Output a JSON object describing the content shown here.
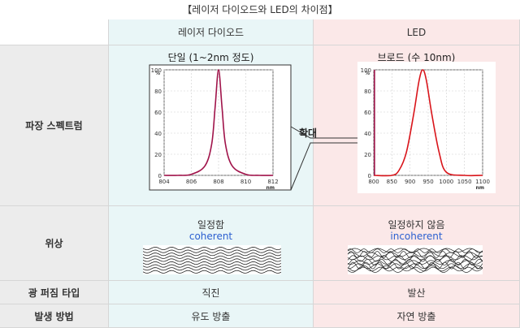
{
  "title": "【레이저 다이오드와 LED의 차이점】",
  "columns": {
    "laser": "레이저 다이오드",
    "led": "LED"
  },
  "rows": {
    "spectrum": "파장 스펙트럼",
    "phase": "위상",
    "spread": "광 퍼짐 타입",
    "method": "발생 방법"
  },
  "laser": {
    "spectrum_caption": "단일 (1~2nm 정도)",
    "phase_label": "일정함",
    "phase_en": "coherent",
    "spread": "직진",
    "method": "유도 방출"
  },
  "led": {
    "spectrum_caption": "브로드 (수 10nm)",
    "phase_label": "일정하지 않음",
    "phase_en": "incoherent",
    "spread": "발산",
    "method": "자연 방출"
  },
  "zoom_label": "확대",
  "colors": {
    "curve": "#a0134a",
    "led_curve": "#d9141a",
    "laser_bg": "#e9f6f7",
    "led_bg": "#fbe8e8",
    "label_bg": "#ececec",
    "en_text": "#2b5fd0"
  },
  "chart_data": [
    {
      "type": "line",
      "series_color": "#a0134a",
      "x": [
        804,
        805,
        806,
        807,
        807.5,
        807.75,
        808,
        808.25,
        808.5,
        809,
        810,
        811,
        812
      ],
      "y": [
        0,
        0,
        1,
        9,
        30,
        65,
        100,
        65,
        30,
        9,
        1,
        0,
        0
      ],
      "xticks": [
        804,
        806,
        808,
        810,
        812
      ],
      "yticks": [
        0,
        20,
        40,
        60,
        80,
        100
      ],
      "xlim": [
        804,
        812
      ],
      "ylim": [
        0,
        100
      ],
      "xunit": "nm",
      "yunit": "%"
    },
    {
      "type": "line",
      "series_color": "#d9141a",
      "x": [
        800,
        850,
        870,
        890,
        910,
        925,
        935,
        945,
        960,
        980,
        1000,
        1050,
        1100
      ],
      "y": [
        0,
        0,
        5,
        22,
        58,
        90,
        100,
        90,
        58,
        22,
        3,
        0,
        0
      ],
      "xticks": [
        800,
        850,
        900,
        950,
        1000,
        1050,
        1100
      ],
      "yticks": [
        0,
        20,
        40,
        60,
        80,
        100
      ],
      "xlim": [
        800,
        1100
      ],
      "ylim": [
        0,
        100
      ],
      "xunit": "nm",
      "yunit": "%",
      "spike_x": 802
    }
  ]
}
